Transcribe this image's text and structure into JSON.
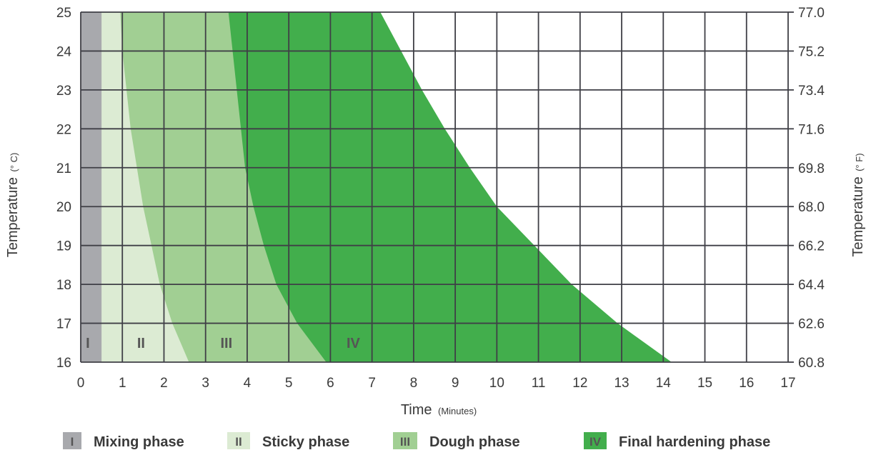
{
  "chart_data": {
    "type": "area",
    "x_axis": {
      "label": "Time",
      "unit": "(Minutes)",
      "range": [
        0,
        17
      ],
      "ticks": [
        "0",
        "1",
        "2",
        "3",
        "4",
        "5",
        "6",
        "7",
        "8",
        "9",
        "10",
        "11",
        "12",
        "13",
        "14",
        "15",
        "16",
        "17"
      ]
    },
    "y_axis_left": {
      "label": "Temperature",
      "unit": "(° C)",
      "range": [
        16,
        25
      ],
      "ticks": [
        "16",
        "17",
        "18",
        "19",
        "20",
        "21",
        "22",
        "23",
        "24",
        "25"
      ]
    },
    "y_axis_right": {
      "label": "Temperature",
      "unit": "(° F)",
      "ticks": [
        "60.8",
        "62.6",
        "64.4",
        "66.2",
        "68.0",
        "69.8",
        "71.6",
        "73.4",
        "75.2",
        "77.0"
      ]
    },
    "grid": true,
    "phases": [
      {
        "roman": "I",
        "name": "Mixing phase",
        "color": "#a8a9ad",
        "label_color": "#555555",
        "label_x": 0.17,
        "boundary_end": [
          [
            0.5,
            16
          ],
          [
            0.5,
            25
          ]
        ]
      },
      {
        "roman": "II",
        "name": "Sticky phase",
        "color": "#dcebd3",
        "label_color": "#555555",
        "label_x": 1.45,
        "boundary_end": [
          [
            2.6,
            16
          ],
          [
            2.2,
            17
          ],
          [
            1.9,
            18
          ],
          [
            1.7,
            19
          ],
          [
            1.5,
            20
          ],
          [
            1.35,
            21
          ],
          [
            1.2,
            22
          ],
          [
            1.1,
            23
          ],
          [
            1.0,
            24
          ],
          [
            0.95,
            25
          ]
        ]
      },
      {
        "roman": "III",
        "name": "Dough phase",
        "color": "#a1cf93",
        "label_color": "#555555",
        "label_x": 3.5,
        "boundary_end": [
          [
            5.9,
            16
          ],
          [
            5.2,
            17
          ],
          [
            4.7,
            18
          ],
          [
            4.4,
            19
          ],
          [
            4.15,
            20
          ],
          [
            3.95,
            21
          ],
          [
            3.85,
            22
          ],
          [
            3.75,
            23
          ],
          [
            3.65,
            24
          ],
          [
            3.55,
            25
          ]
        ]
      },
      {
        "roman": "IV",
        "name": "Final hardening phase",
        "color": "#42ae4c",
        "label_color": "#555555",
        "label_x": 6.55,
        "boundary_end": [
          [
            14.2,
            16
          ],
          [
            12.9,
            17
          ],
          [
            11.8,
            18
          ],
          [
            10.9,
            19
          ],
          [
            10.0,
            20
          ],
          [
            9.35,
            21
          ],
          [
            8.75,
            22
          ],
          [
            8.2,
            23
          ],
          [
            7.7,
            24
          ],
          [
            7.2,
            25
          ]
        ]
      }
    ]
  }
}
